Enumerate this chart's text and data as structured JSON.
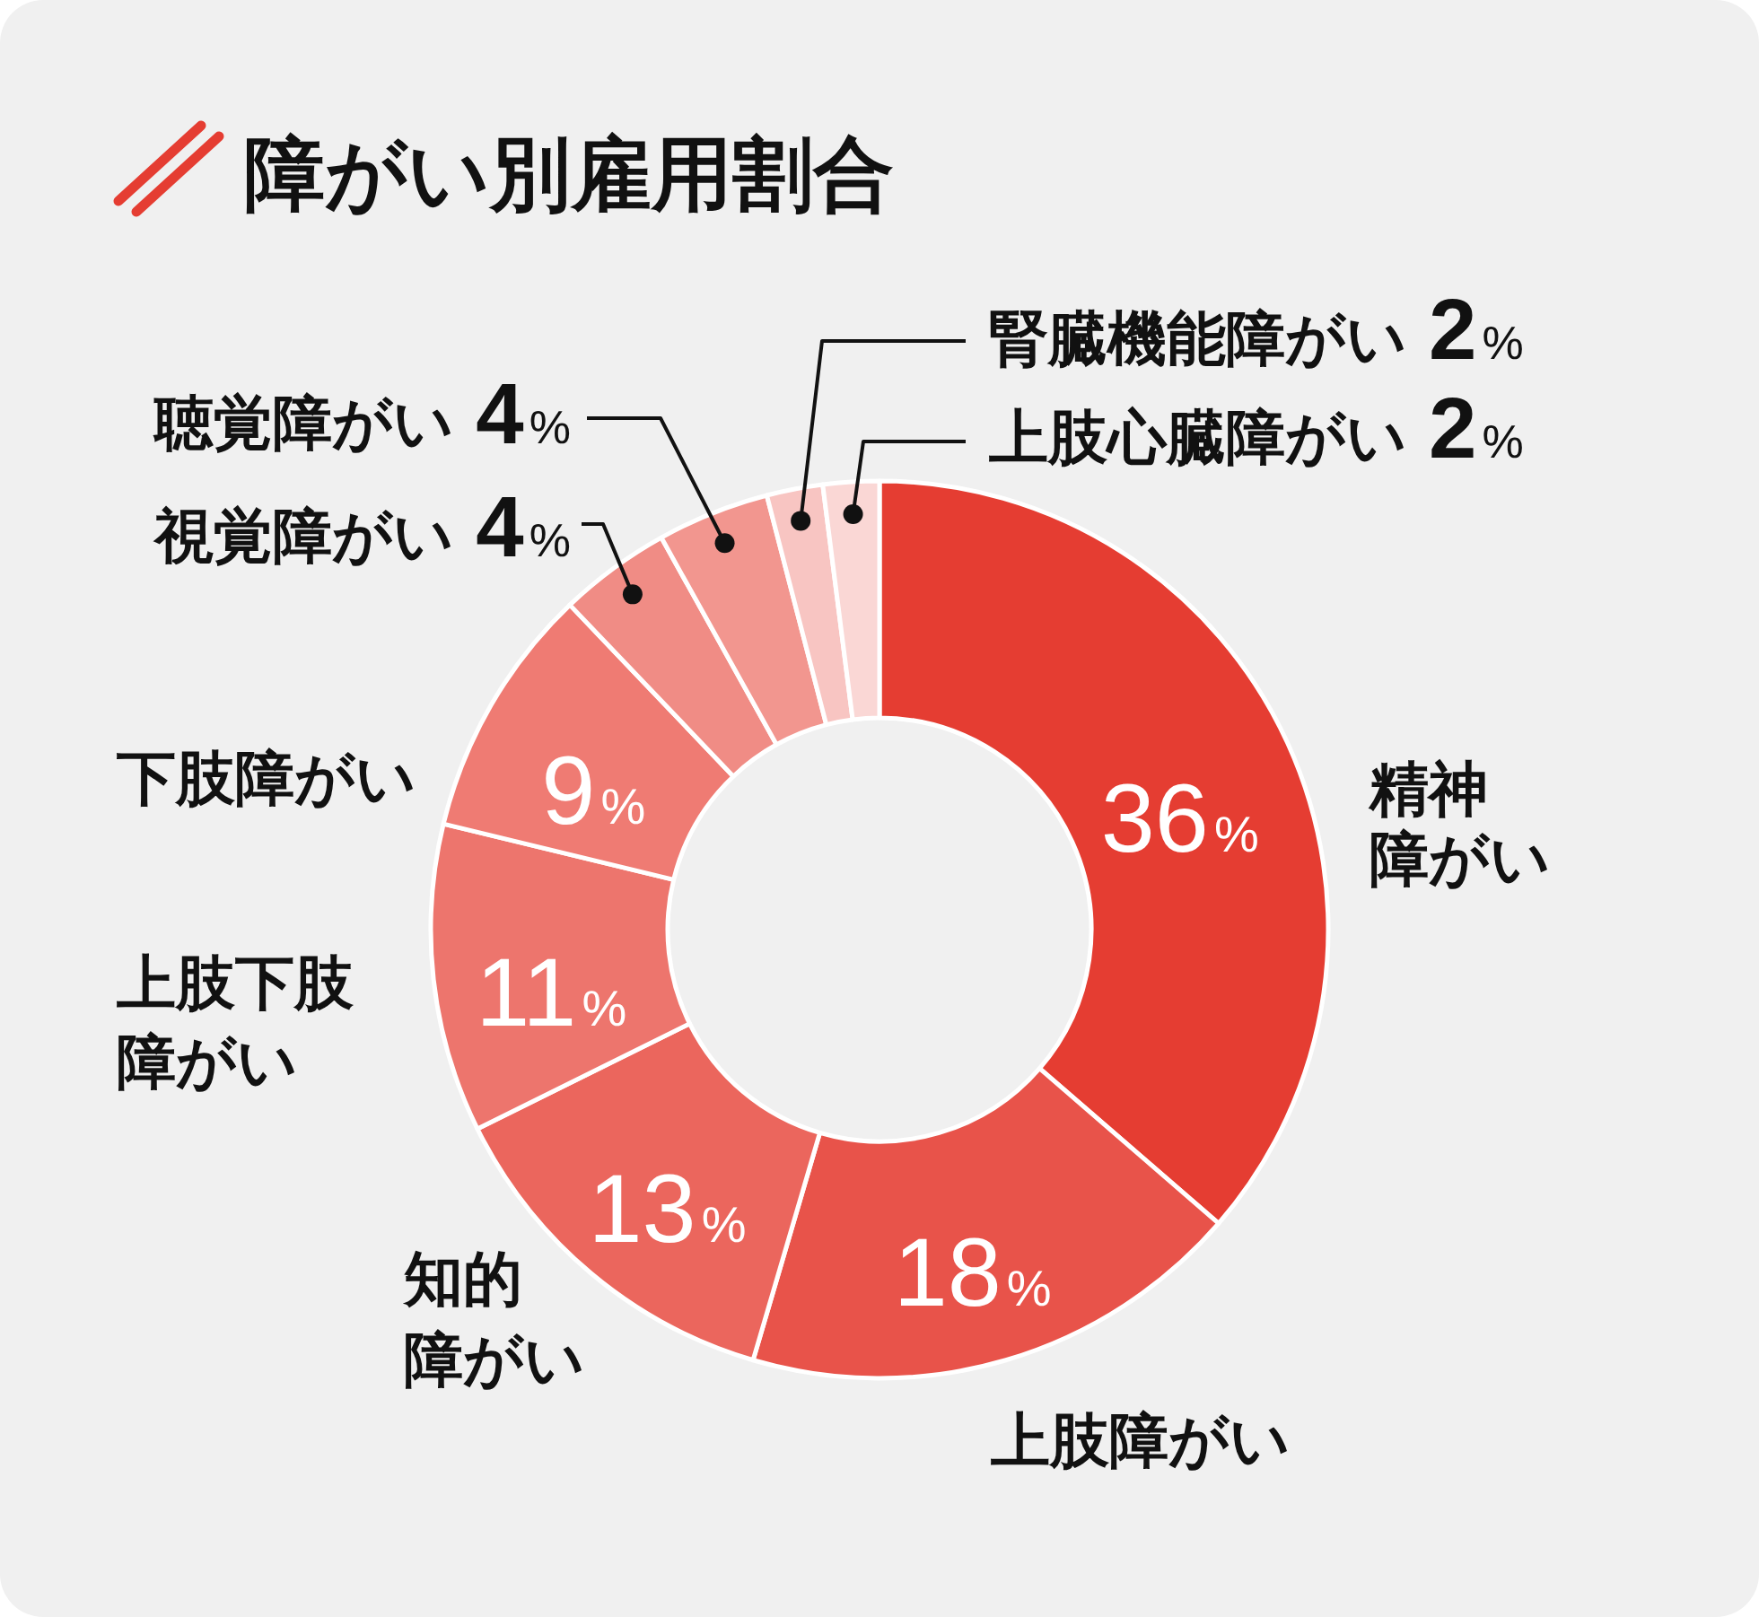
{
  "chart_data": {
    "type": "donut",
    "title": "障がい別雇用割合",
    "categories": [
      "精神障がい",
      "上肢障がい",
      "知的障がい",
      "上肢下肢障がい",
      "下肢障がい",
      "視覚障がい",
      "聴覚障がい",
      "腎臓機能障がい",
      "上肢心臓障がい"
    ],
    "values": [
      36,
      18,
      13,
      11,
      9,
      4,
      4,
      2,
      2
    ],
    "colors": [
      "#e53d32",
      "#e8534a",
      "#eb665d",
      "#ed756d",
      "#ef7b73",
      "#f08c85",
      "#f2968f",
      "#f8c5c2",
      "#fad7d5"
    ],
    "value_labels": [
      "36%",
      "18%",
      "13%",
      "11%",
      "9%",
      "4%",
      "4%",
      "2%",
      "2%"
    ]
  }
}
